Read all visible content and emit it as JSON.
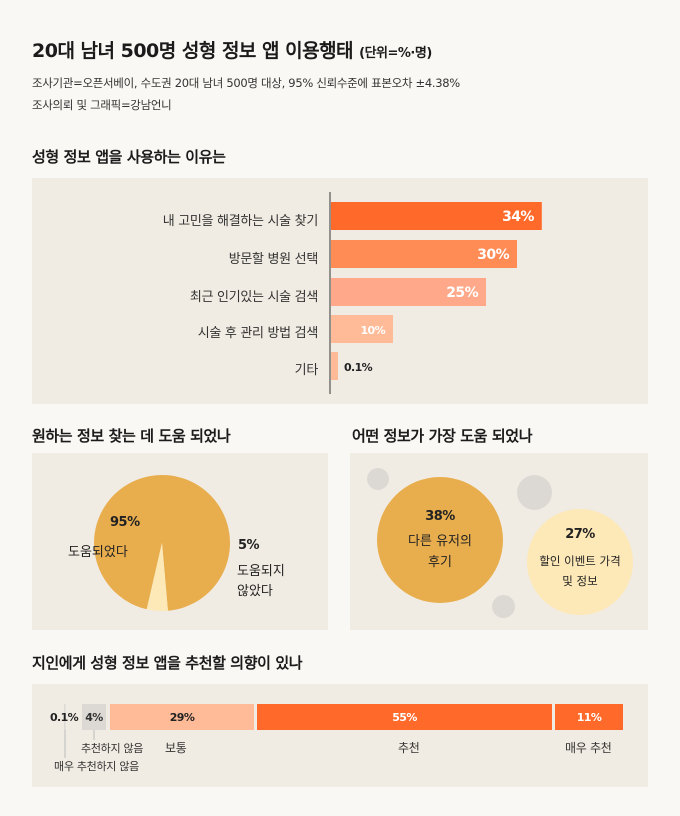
{
  "header": {
    "title": "20대 남녀 500명 성형 정보 앱 이용행태",
    "unit": "(단위=%·명)",
    "meta1": "조사기관=오픈서베이, 수도권 20대 남녀 500명 대상, 95% 신뢰수준에 표본오차 ±4.38%",
    "meta2": "조사의뢰 및 그래픽=강남언니"
  },
  "section1": {
    "title": "성형 정보 앱을 사용하는 이유는"
  },
  "section2": {
    "title": "원하는 정보 찾는 데 도움 되었나"
  },
  "section3": {
    "title": "어떤 정보가 가장 도움 되었나"
  },
  "section4": {
    "title": "지인에게 성형 정보 앱을 추천할 의향이 있나"
  },
  "colors": {
    "orange_dark": "#ff6a2a",
    "orange_mid": "#ff8b55",
    "orange_light": "#ffa98a",
    "peach": "#ffbb98",
    "gold": "#e8ae4e",
    "cream": "#fde8b8",
    "gray": "#dcd9d4",
    "panel": "#f1ece3"
  },
  "chart_data": [
    {
      "type": "bar",
      "orientation": "horizontal",
      "categories": [
        "내 고민을 해결하는 시술 찾기",
        "방문할 병원 선택",
        "최근 인기있는 시술 검색",
        "시술 후 관리 방법 검색",
        "기타"
      ],
      "values": [
        34,
        30,
        25,
        10,
        0.1
      ],
      "value_labels": [
        "34%",
        "30%",
        "25%",
        "10%",
        "0.1%"
      ]
    },
    {
      "type": "pie",
      "labels": [
        "도움되었다",
        "도움되지 않았다"
      ],
      "values": [
        95,
        5
      ],
      "value_labels": [
        "95%",
        "5%"
      ]
    },
    {
      "type": "bubble",
      "labels": [
        "다른 유저의 후기",
        "할인 이벤트 가격 및 정보"
      ],
      "values": [
        38,
        27
      ],
      "value_labels": [
        "38%",
        "27%"
      ]
    },
    {
      "type": "bar",
      "orientation": "stacked-horizontal",
      "categories": [
        "매우 추천하지 않음",
        "추천하지 않음",
        "보통",
        "추천",
        "매우 추천"
      ],
      "values": [
        0.1,
        4,
        29,
        55,
        11
      ],
      "value_labels": [
        "0.1%",
        "4%",
        "29%",
        "55%",
        "11%"
      ]
    }
  ]
}
